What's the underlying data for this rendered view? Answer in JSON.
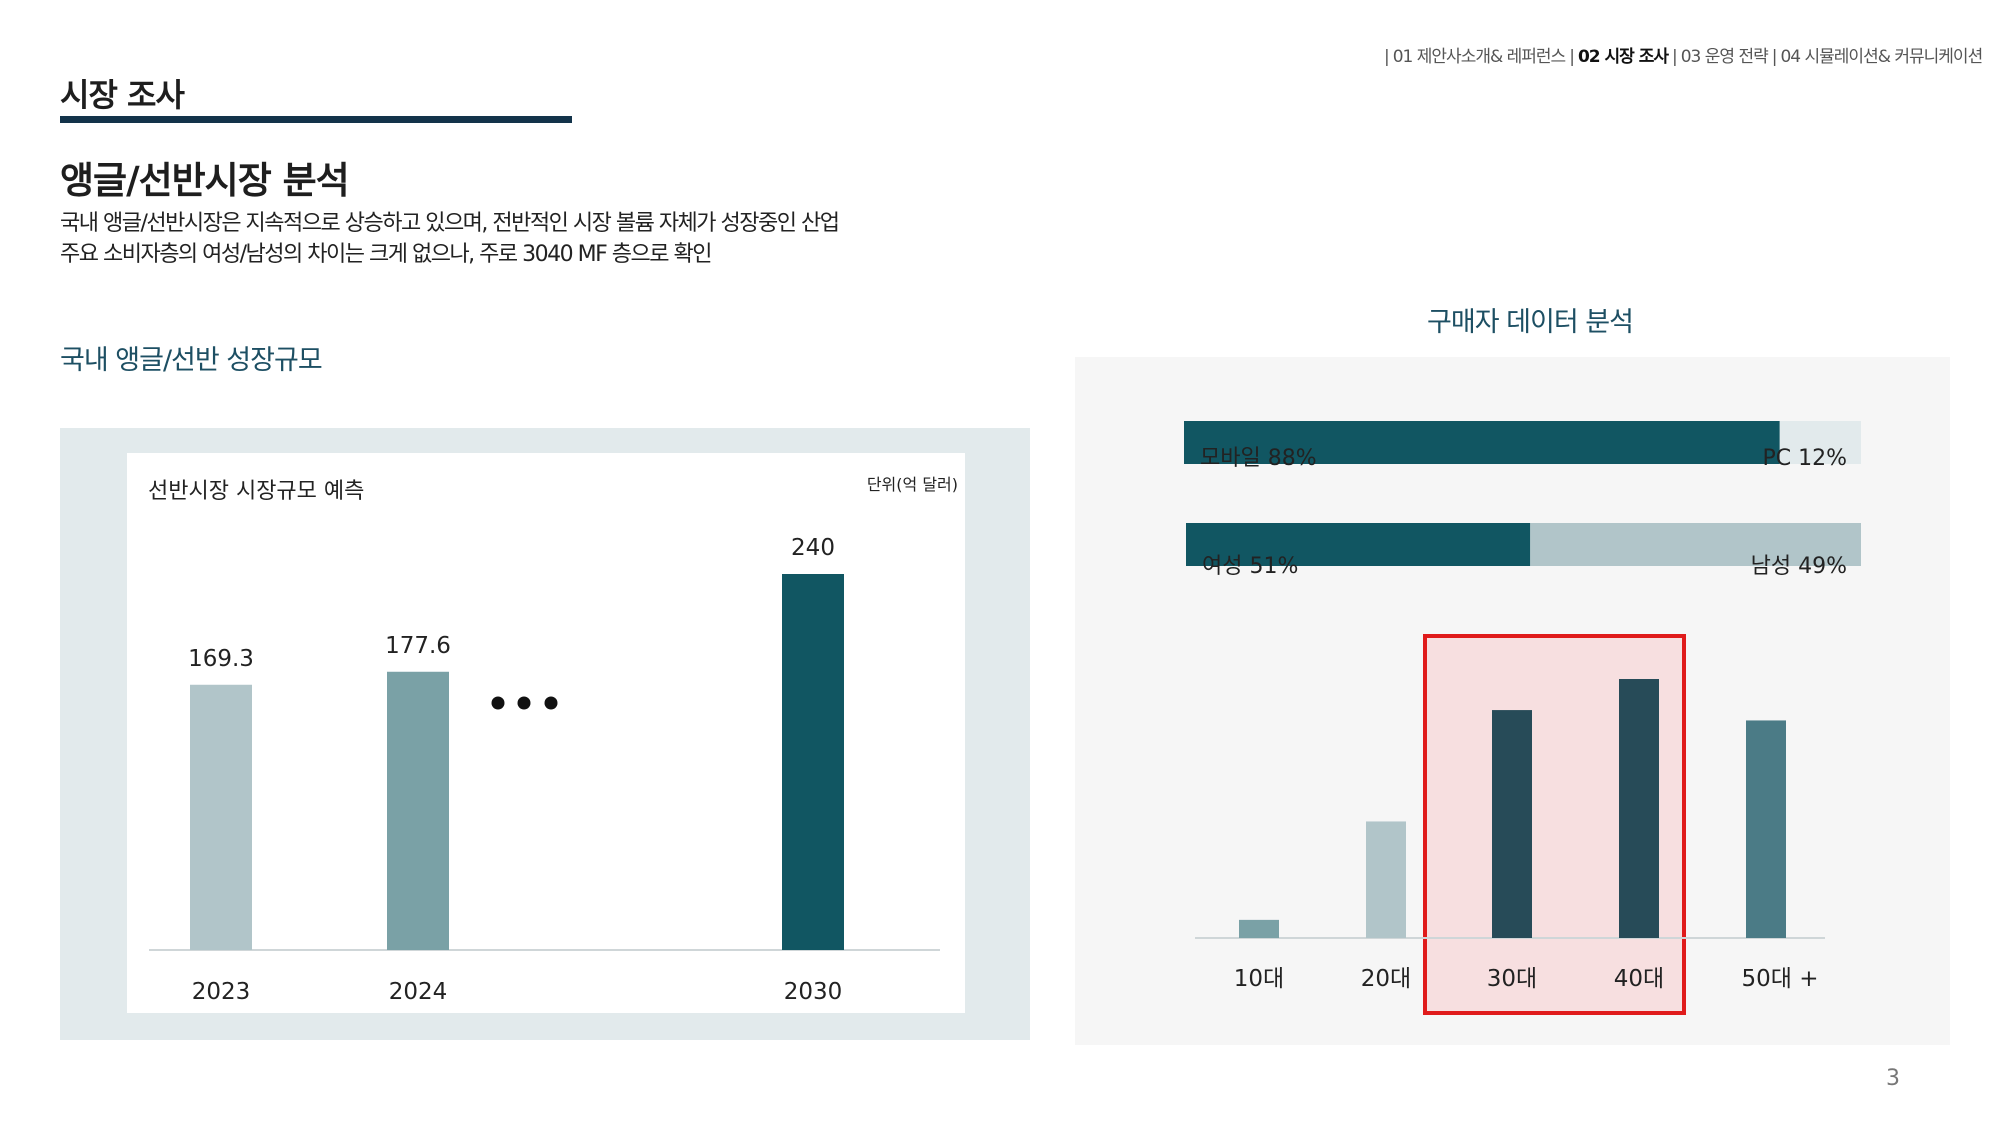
{
  "nav": {
    "items": [
      {
        "label": "01 제안사소개& 레퍼런스",
        "active": false
      },
      {
        "label": "02 시장 조사",
        "active": true
      },
      {
        "label": "03 운영 전략",
        "active": false
      },
      {
        "label": "04 시뮬레이션& 커뮤니케이션",
        "active": false
      }
    ],
    "separator": "|"
  },
  "section_title": "시장 조사",
  "heading": "앵글/선반시장 분석",
  "description": [
    "국내 앵글/선반시장은 지속적으로 상승하고 있으며, 전반적인 시장 볼륨 자체가 성장중인 산업",
    "주요 소비자층의 여성/남성의 차이는 크게 없으나, 주로 3040 MF 층으로 확인"
  ],
  "left_subtitle": "국내 앵글/선반 성장규모",
  "right_subtitle": "구매자 데이터 분석",
  "page_number": "3",
  "colors": {
    "navy": "#13334a",
    "teal_dark": "#115662",
    "teal_mid": "#7aa1a6",
    "teal_light": "#b1c5c9",
    "slate_dark": "#274b58",
    "slate_mid": "#4b7b86",
    "highlight_fill": "#f7dfe0",
    "highlight_border": "#e01b1b"
  },
  "chart_data": [
    {
      "type": "bar",
      "title": "선반시장 시장규모 예측",
      "unit": "단위(억 달러)",
      "categories": [
        "2023",
        "2024",
        "2030"
      ],
      "values": [
        169.3,
        177.6,
        240
      ],
      "value_labels": [
        "169.3",
        "177.6",
        "240"
      ],
      "bar_colors": [
        "#b1c5c9",
        "#7aa1a6",
        "#115662"
      ],
      "gap_marker": "• • •",
      "ylim": [
        0,
        240
      ]
    },
    {
      "type": "bar",
      "orientation": "horizontal-stacked",
      "rows": [
        {
          "segments": [
            {
              "label": "모바일 88%",
              "value": 88,
              "color": "#115662"
            },
            {
              "label": "PC 12%",
              "value": 12,
              "color": "#e2eaec"
            }
          ]
        },
        {
          "segments": [
            {
              "label": "여성 51%",
              "value": 51,
              "color": "#115662"
            },
            {
              "label": "남성 49%",
              "value": 49,
              "color": "#b1c5c9"
            }
          ]
        }
      ]
    },
    {
      "type": "bar",
      "categories": [
        "10대",
        "20대",
        "30대",
        "40대",
        "50대 +"
      ],
      "values": [
        7,
        45,
        88,
        100,
        84
      ],
      "value_scale": "relative, unlabeled",
      "bar_colors": [
        "#7aa1a6",
        "#b1c5c9",
        "#274b58",
        "#274b58",
        "#4b7b86"
      ],
      "highlighted": [
        "30대",
        "40대"
      ]
    }
  ]
}
